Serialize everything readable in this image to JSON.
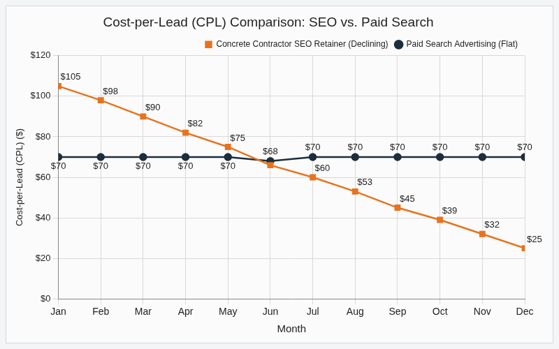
{
  "chart_data": {
    "type": "line",
    "title": "Cost-per-Lead (CPL) Comparison: SEO vs. Paid Search",
    "x_label": "Month",
    "y_label": "Cost-per-Lead (CPL) ($)",
    "categories": [
      "Jan",
      "Feb",
      "Mar",
      "Apr",
      "May",
      "Jun",
      "Jul",
      "Aug",
      "Sep",
      "Oct",
      "Nov",
      "Dec"
    ],
    "series": [
      {
        "name": "Concrete Contractor SEO Retainer (Declining)",
        "color": "#e8731e",
        "marker": "square",
        "values": [
          105,
          98,
          90,
          82,
          75,
          66,
          60,
          53,
          45,
          39,
          32,
          25
        ],
        "value_labels": [
          "$105",
          "$98",
          "$90",
          "$82",
          "$75",
          null,
          "$60",
          "$53",
          "$45",
          "$39",
          "$32",
          "$25"
        ]
      },
      {
        "name": "Paid Search Advertising (Flat)",
        "color": "#1c2e3c",
        "marker": "circle",
        "values": [
          70,
          70,
          70,
          70,
          70,
          68,
          70,
          70,
          70,
          70,
          70,
          70
        ],
        "value_labels": [
          "$70",
          "$70",
          "$70",
          "$70",
          "$70",
          "$68",
          "$70",
          "$70",
          "$70",
          "$70",
          "$70",
          "$70"
        ]
      }
    ],
    "ylim": [
      0,
      120
    ],
    "yticks": [
      {
        "value": 0,
        "label": "$0"
      },
      {
        "value": 20,
        "label": "$20"
      },
      {
        "value": 40,
        "label": "$40"
      },
      {
        "value": 60,
        "label": "$60"
      },
      {
        "value": 80,
        "label": "$80"
      },
      {
        "value": 100,
        "label": "$100"
      },
      {
        "value": 120,
        "label": "$120"
      }
    ],
    "grid": true,
    "legend": "top-right",
    "data_labels": true
  }
}
